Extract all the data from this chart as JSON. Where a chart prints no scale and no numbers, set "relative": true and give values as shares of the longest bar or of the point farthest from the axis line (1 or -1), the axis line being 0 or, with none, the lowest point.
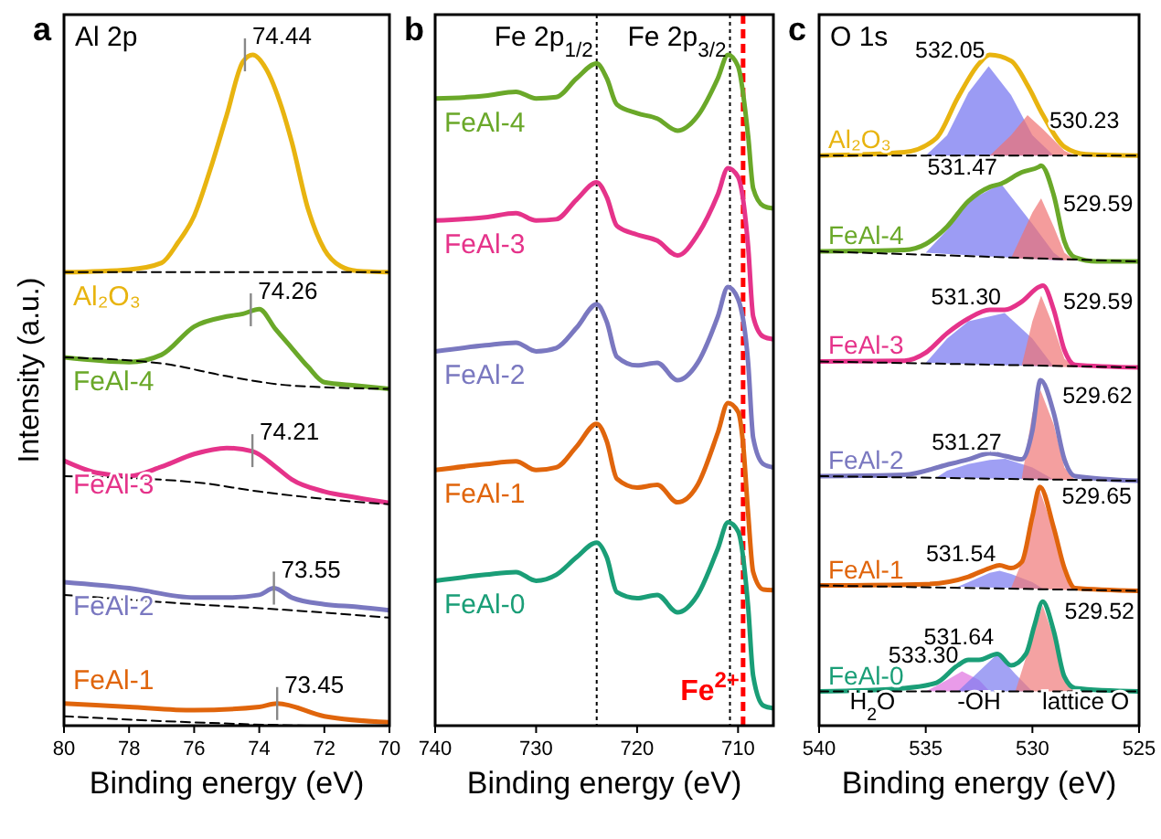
{
  "chart_data": [
    {
      "type": "line",
      "title": "a",
      "subtitle": "Al 2p",
      "xlabel": "Binding energy (eV)",
      "ylabel": "Intensity (a.u.)",
      "relative": true,
      "xlim": [
        80,
        70
      ],
      "xticks": [
        80,
        78,
        76,
        74,
        72,
        70
      ],
      "series": [
        {
          "name": "Al₂O₃",
          "color": "#e8b410",
          "x": [
            80,
            78,
            77,
            76.5,
            76,
            75.5,
            75,
            74.5,
            74.2,
            73.8,
            73.3,
            73,
            72.5,
            72,
            71.5,
            71,
            70
          ],
          "values": [
            0.676,
            0.68,
            0.69,
            0.72,
            0.76,
            0.83,
            0.91,
            0.99,
            1.0,
            0.98,
            0.92,
            0.87,
            0.77,
            0.71,
            0.685,
            0.678,
            0.676
          ]
        },
        {
          "color": "#000000",
          "line_style": "dashed",
          "x": [
            80,
            70
          ],
          "values": [
            0.676,
            0.676
          ]
        },
        {
          "name": "FeAl-4",
          "color": "#6aa829",
          "x": [
            80,
            78,
            77,
            76,
            75,
            74.5,
            74,
            73.5,
            73,
            72.5,
            72,
            71,
            70
          ],
          "values": [
            0.549,
            0.542,
            0.553,
            0.595,
            0.61,
            0.614,
            0.621,
            0.591,
            0.563,
            0.535,
            0.512,
            0.507,
            0.502
          ]
        },
        {
          "color": "#000000",
          "line_style": "dashed",
          "x": [
            80,
            77,
            75,
            73,
            70
          ],
          "values": [
            0.549,
            0.54,
            0.521,
            0.507,
            0.502
          ]
        },
        {
          "name": "FeAl-3",
          "color": "#e5338a",
          "x": [
            80,
            79,
            78,
            77,
            76,
            75,
            74.2,
            73.5,
            73,
            72,
            71,
            70
          ],
          "values": [
            0.395,
            0.377,
            0.372,
            0.386,
            0.405,
            0.414,
            0.409,
            0.386,
            0.367,
            0.349,
            0.34,
            0.332
          ]
        },
        {
          "color": "#000000",
          "line_style": "dashed",
          "x": [
            80,
            76,
            74,
            72,
            70
          ],
          "values": [
            0.372,
            0.363,
            0.349,
            0.338,
            0.33
          ]
        },
        {
          "name": "FeAl-2",
          "color": "#7a78c0",
          "x": [
            80,
            78,
            76,
            75,
            74,
            73.55,
            73,
            72,
            71,
            70
          ],
          "values": [
            0.214,
            0.205,
            0.191,
            0.191,
            0.195,
            0.205,
            0.191,
            0.181,
            0.177,
            0.172
          ]
        },
        {
          "color": "#000000",
          "line_style": "dashed",
          "x": [
            80,
            76,
            73,
            70
          ],
          "values": [
            0.195,
            0.181,
            0.172,
            0.161
          ]
        },
        {
          "name": "FeAl-1",
          "color": "#e0650c",
          "x": [
            80,
            78,
            76,
            74,
            73.45,
            72,
            70
          ],
          "values": [
            0.033,
            0.028,
            0.023,
            0.028,
            0.033,
            0.014,
            0.005
          ]
        },
        {
          "color": "#000000",
          "line_style": "dashed",
          "x": [
            80,
            76,
            72,
            70
          ],
          "values": [
            0.014,
            0.005,
            0.0,
            0.0
          ]
        }
      ],
      "annotations": [
        {
          "text": "74.44",
          "x": 74.44,
          "y": 1.0
        },
        {
          "text": "74.26",
          "x": 74.26,
          "y": 0.62
        },
        {
          "text": "74.21",
          "x": 74.21,
          "y": 0.41
        },
        {
          "text": "73.55",
          "x": 73.55,
          "y": 0.205
        },
        {
          "text": "73.45",
          "x": 73.45,
          "y": 0.033
        }
      ]
    },
    {
      "type": "line",
      "title": "b",
      "xlabel": "Binding energy (eV)",
      "relative": true,
      "xlim": [
        740,
        706.5
      ],
      "xticks": [
        740,
        730,
        720,
        710
      ],
      "ref_lines": [
        {
          "axis": "x",
          "value": 724,
          "label": "Fe 2p$_{1/2}$",
          "line_style": "dotted"
        },
        {
          "axis": "x",
          "value": 710.8,
          "label": "Fe 2p$_{3/2}$",
          "line_style": "dotted"
        },
        {
          "axis": "x",
          "value": 709.5,
          "label": "Fe$^{2+}$",
          "line_style": "dashed",
          "color": "#ff0000"
        }
      ],
      "series": [
        {
          "name": "FeAl-4",
          "color": "#6aa829",
          "x": [
            740,
            735,
            732,
            730,
            728,
            726,
            724,
            723,
            722,
            720,
            718,
            716,
            714,
            712,
            711,
            710,
            709,
            708.5,
            707.5,
            706.5
          ],
          "values": [
            0.935,
            0.939,
            0.945,
            0.935,
            0.937,
            0.965,
            0.987,
            0.965,
            0.926,
            0.913,
            0.905,
            0.887,
            0.909,
            0.965,
            1.0,
            0.983,
            0.879,
            0.801,
            0.775,
            0.771
          ]
        },
        {
          "name": "FeAl-3",
          "color": "#e5338a",
          "x": [
            740,
            735,
            732,
            730,
            728,
            726,
            724,
            723,
            722,
            720,
            718,
            716,
            714,
            712,
            711,
            710,
            709,
            708.5,
            707.5,
            706.5
          ],
          "values": [
            0.753,
            0.758,
            0.764,
            0.753,
            0.755,
            0.784,
            0.81,
            0.788,
            0.745,
            0.732,
            0.723,
            0.701,
            0.732,
            0.792,
            0.831,
            0.818,
            0.714,
            0.61,
            0.58,
            0.576
          ]
        },
        {
          "name": "FeAl-2",
          "color": "#7a78c0",
          "x": [
            740,
            735,
            732,
            730,
            728,
            726,
            724,
            723,
            722,
            720,
            718,
            716,
            714,
            712,
            711,
            710,
            709,
            708.5,
            707.5,
            706.5
          ],
          "values": [
            0.558,
            0.567,
            0.571,
            0.558,
            0.563,
            0.593,
            0.628,
            0.602,
            0.55,
            0.537,
            0.541,
            0.515,
            0.541,
            0.61,
            0.654,
            0.636,
            0.541,
            0.429,
            0.39,
            0.385
          ]
        },
        {
          "name": "FeAl-1",
          "color": "#e0650c",
          "x": [
            740,
            735,
            732,
            730,
            728,
            726,
            724,
            723,
            722,
            720,
            718,
            716,
            714,
            712,
            711,
            710,
            709.5,
            709,
            708.5,
            707.5,
            706.5
          ],
          "values": [
            0.381,
            0.39,
            0.394,
            0.381,
            0.385,
            0.416,
            0.45,
            0.424,
            0.368,
            0.355,
            0.359,
            0.333,
            0.359,
            0.437,
            0.481,
            0.468,
            0.42,
            0.316,
            0.229,
            0.203,
            0.202
          ]
        },
        {
          "name": "FeAl-0",
          "color": "#1a9e77",
          "x": [
            740,
            735,
            732,
            730,
            728,
            726,
            724,
            723,
            722,
            720,
            718,
            716,
            714,
            712,
            711,
            710,
            709,
            708.5,
            707.5,
            706.5
          ],
          "values": [
            0.216,
            0.225,
            0.229,
            0.216,
            0.225,
            0.251,
            0.273,
            0.251,
            0.199,
            0.19,
            0.195,
            0.169,
            0.195,
            0.264,
            0.303,
            0.29,
            0.177,
            0.074,
            0.03,
            0.026
          ]
        }
      ]
    },
    {
      "type": "line",
      "title": "c",
      "subtitle": "O 1s",
      "xlabel": "Binding energy (eV)",
      "relative": true,
      "xlim": [
        540,
        525
      ],
      "xticks": [
        540,
        535,
        530,
        525
      ],
      "series": [
        {
          "type": "area",
          "color": "#7070f0",
          "x": [
            535,
            534,
            533,
            532.05,
            531,
            530,
            529
          ],
          "values": [
            0.85,
            0.88,
            0.944,
            0.983,
            0.94,
            0.88,
            0.85
          ]
        },
        {
          "type": "area",
          "color": "#f07070",
          "x": [
            532,
            531,
            530.23,
            529.5,
            528.5,
            528
          ],
          "values": [
            0.85,
            0.88,
            0.91,
            0.889,
            0.857,
            0.85
          ]
        },
        {
          "type": "area",
          "color": "#7272f0",
          "x": [
            535,
            534,
            533,
            531.47,
            530,
            529,
            528.5
          ],
          "values": [
            0.705,
            0.739,
            0.782,
            0.808,
            0.748,
            0.705,
            0.693
          ]
        },
        {
          "type": "area",
          "color": "#f07272",
          "x": [
            531,
            530,
            529.59,
            529,
            528.5,
            528
          ],
          "values": [
            0.697,
            0.765,
            0.786,
            0.744,
            0.705,
            0.693
          ]
        },
        {
          "type": "area",
          "color": "#7474f0",
          "x": [
            535,
            534,
            533,
            531.3,
            530,
            529
          ],
          "values": [
            0.541,
            0.577,
            0.603,
            0.615,
            0.577,
            0.535
          ]
        },
        {
          "type": "area",
          "color": "#f07474",
          "x": [
            530.5,
            530,
            529.59,
            529,
            528.5,
            528
          ],
          "values": [
            0.537,
            0.603,
            0.641,
            0.594,
            0.547,
            0.534
          ]
        },
        {
          "type": "area",
          "color": "#7676f0",
          "x": [
            534.5,
            534,
            533,
            532,
            531.27,
            530,
            529
          ],
          "values": [
            0.37,
            0.38,
            0.39,
            0.396,
            0.398,
            0.385,
            0.367
          ]
        },
        {
          "type": "area",
          "color": "#f07676",
          "x": [
            530.5,
            530,
            529.62,
            529,
            528.5,
            528
          ],
          "values": [
            0.368,
            0.466,
            0.5,
            0.449,
            0.385,
            0.366
          ]
        },
        {
          "type": "area",
          "color": "#7878f0",
          "x": [
            533.5,
            533,
            532,
            531.54,
            531,
            530,
            529.5
          ],
          "values": [
            0.207,
            0.214,
            0.228,
            0.231,
            0.226,
            0.214,
            0.204
          ]
        },
        {
          "type": "area",
          "color": "#f07878",
          "x": [
            531,
            530.5,
            530,
            529.65,
            529,
            528.5,
            528
          ],
          "values": [
            0.205,
            0.244,
            0.312,
            0.35,
            0.291,
            0.231,
            0.202
          ]
        },
        {
          "type": "area",
          "color": "#e070e0",
          "x": [
            535,
            534,
            533.3,
            532.5,
            532
          ],
          "values": [
            0.051,
            0.068,
            0.081,
            0.068,
            0.051
          ]
        },
        {
          "type": "area",
          "color": "#7a7af0",
          "x": [
            533.5,
            532.5,
            531.64,
            530.8,
            530
          ],
          "values": [
            0.051,
            0.081,
            0.107,
            0.077,
            0.051
          ]
        },
        {
          "type": "area",
          "color": "#f07a7a",
          "x": [
            530.8,
            530,
            529.52,
            529,
            528.5,
            528
          ],
          "values": [
            0.051,
            0.132,
            0.179,
            0.132,
            0.068,
            0.051
          ]
        },
        {
          "name": "Al₂O₃",
          "color": "#e8b410",
          "x": [
            540,
            536,
            534.5,
            533.5,
            532.5,
            532,
            531,
            530.2,
            529.5,
            528.5,
            527.5,
            525
          ],
          "values": [
            0.85,
            0.855,
            0.876,
            0.936,
            0.987,
            1.0,
            0.991,
            0.953,
            0.91,
            0.863,
            0.852,
            0.85
          ]
        },
        {
          "color": "#000000",
          "line_style": "dashed",
          "x": [
            540,
            525
          ],
          "values": [
            0.85,
            0.85
          ]
        },
        {
          "name": "FeAl-4",
          "color": "#6aa829",
          "x": [
            540,
            536,
            535,
            534,
            533,
            532,
            531.47,
            530.5,
            529.7,
            529.59,
            529,
            528.5,
            528,
            527,
            525
          ],
          "values": [
            0.707,
            0.709,
            0.718,
            0.744,
            0.782,
            0.803,
            0.808,
            0.825,
            0.833,
            0.835,
            0.791,
            0.722,
            0.698,
            0.692,
            0.692
          ]
        },
        {
          "color": "#000000",
          "line_style": "dashed",
          "x": [
            540,
            525
          ],
          "values": [
            0.707,
            0.692
          ]
        },
        {
          "name": "FeAl-3",
          "color": "#e5338a",
          "x": [
            540,
            536,
            535,
            534,
            533,
            532,
            531.3,
            530.5,
            529.7,
            529.5,
            529,
            528.5,
            528,
            525
          ],
          "values": [
            0.543,
            0.544,
            0.556,
            0.585,
            0.607,
            0.62,
            0.62,
            0.632,
            0.654,
            0.656,
            0.62,
            0.56,
            0.538,
            0.534
          ]
        },
        {
          "color": "#000000",
          "line_style": "dashed",
          "x": [
            540,
            525
          ],
          "values": [
            0.543,
            0.534
          ]
        },
        {
          "name": "FeAl-2",
          "color": "#7a78c0",
          "x": [
            540,
            536,
            534,
            533,
            532,
            531.27,
            530.5,
            530,
            529.62,
            529,
            528.5,
            528,
            525
          ],
          "values": [
            0.372,
            0.374,
            0.389,
            0.397,
            0.406,
            0.402,
            0.397,
            0.44,
            0.515,
            0.466,
            0.397,
            0.372,
            0.365
          ]
        },
        {
          "color": "#000000",
          "line_style": "dashed",
          "x": [
            540,
            525
          ],
          "values": [
            0.372,
            0.365
          ]
        },
        {
          "name": "FeAl-1",
          "color": "#e0650c",
          "x": [
            540,
            535,
            533,
            532,
            531.54,
            531,
            530.5,
            530,
            529.65,
            529,
            528.5,
            528,
            525
          ],
          "values": [
            0.209,
            0.211,
            0.222,
            0.235,
            0.239,
            0.235,
            0.244,
            0.312,
            0.356,
            0.295,
            0.235,
            0.205,
            0.201
          ]
        },
        {
          "color": "#000000",
          "line_style": "dashed",
          "x": [
            540,
            525
          ],
          "values": [
            0.209,
            0.201
          ]
        },
        {
          "name": "FeAl-0",
          "color": "#1a9e77",
          "x": [
            540,
            536,
            534.5,
            533.5,
            533,
            532.5,
            531.64,
            531,
            530.3,
            529.9,
            529.52,
            529,
            528.5,
            528,
            525
          ],
          "values": [
            0.051,
            0.056,
            0.064,
            0.09,
            0.098,
            0.098,
            0.107,
            0.09,
            0.107,
            0.15,
            0.185,
            0.141,
            0.073,
            0.056,
            0.051
          ]
        },
        {
          "color": "#000000",
          "line_style": "dashed",
          "x": [
            540,
            525
          ],
          "values": [
            0.051,
            0.051
          ]
        }
      ],
      "annotations": [
        {
          "text": "532.05",
          "x": 532.05,
          "y": 0.983
        },
        {
          "text": "530.23",
          "x": 530.23,
          "y": 0.91
        },
        {
          "text": "531.47",
          "x": 531.47,
          "y": 0.808
        },
        {
          "text": "529.59",
          "x": 529.59,
          "y": 0.786
        },
        {
          "text": "531.30",
          "x": 531.3,
          "y": 0.615
        },
        {
          "text": "529.59",
          "x": 529.59,
          "y": 0.641
        },
        {
          "text": "531.27",
          "x": 531.27,
          "y": 0.398
        },
        {
          "text": "529.62",
          "x": 529.62,
          "y": 0.5
        },
        {
          "text": "531.54",
          "x": 531.54,
          "y": 0.231
        },
        {
          "text": "529.65",
          "x": 529.65,
          "y": 0.35
        },
        {
          "text": "531.64",
          "x": 531.64,
          "y": 0.107
        },
        {
          "text": "529.52",
          "x": 529.52,
          "y": 0.179
        },
        {
          "text": "533.30",
          "x": 533.3,
          "y": 0.081
        },
        "H$_{2}$O",
        "-OH",
        "lattice O"
      ]
    }
  ]
}
